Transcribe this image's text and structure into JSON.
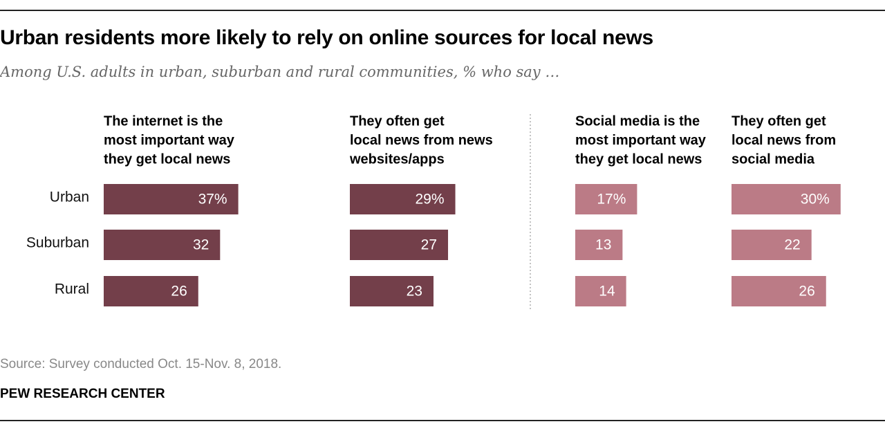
{
  "header": {
    "title": "Urban residents more likely to rely on online sources for local news",
    "subtitle": "Among U.S. adults in urban, suburban and rural communities, % who say …"
  },
  "footer": {
    "source": "Source: Survey conducted Oct. 15-Nov. 8, 2018.",
    "brand": "PEW RESEARCH CENTER"
  },
  "colors": {
    "dark_bar": "#733f4a",
    "light_bar": "#bb7b86",
    "divider": "#9a9a9a"
  },
  "chart_data": {
    "type": "bar",
    "orientation": "horizontal",
    "categories": [
      "Urban",
      "Suburban",
      "Rural"
    ],
    "series": [
      {
        "name": [
          "The internet is the",
          "most important way",
          "they get local news"
        ],
        "values": [
          37,
          32,
          26
        ],
        "labels": [
          "37%",
          "32",
          "26"
        ],
        "color": "dark"
      },
      {
        "name": [
          "They often get",
          "local news from news",
          "websites/apps"
        ],
        "values": [
          29,
          27,
          23
        ],
        "labels": [
          "29%",
          "27",
          "23"
        ],
        "color": "dark"
      },
      {
        "name": [
          "Social media is the",
          "most important way",
          "they get local news"
        ],
        "values": [
          17,
          13,
          14
        ],
        "labels": [
          "17%",
          "13",
          "14"
        ],
        "color": "light"
      },
      {
        "name": [
          "They often get",
          "local news from",
          "social media"
        ],
        "values": [
          30,
          22,
          26
        ],
        "labels": [
          "30%",
          "22",
          "26"
        ],
        "color": "light"
      }
    ],
    "grid": false,
    "legend": "none"
  }
}
